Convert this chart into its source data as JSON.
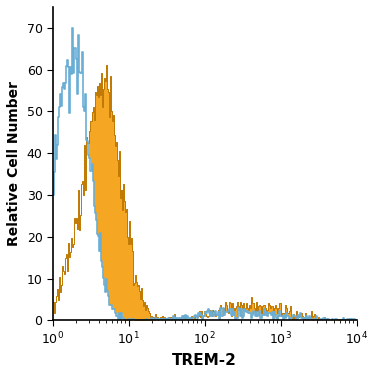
{
  "title": "",
  "xlabel": "TREM-2",
  "ylabel": "Relative Cell Number",
  "xlim": [
    1,
    10000
  ],
  "ylim": [
    0,
    75
  ],
  "yticks": [
    0,
    10,
    20,
    30,
    40,
    50,
    60,
    70
  ],
  "background_color": "#ffffff",
  "filled_color": "#F5A623",
  "open_color": "#6aaed6",
  "filled_edge_color": "#c07800",
  "open_edge_color": "#4a90c4",
  "seed": 42,
  "n_bins": 300,
  "ylabel_fontsize": 10,
  "xlabel_fontsize": 11,
  "tick_fontsize": 9,
  "isotype_peak_y": 70,
  "antibody_peak_y": 61
}
